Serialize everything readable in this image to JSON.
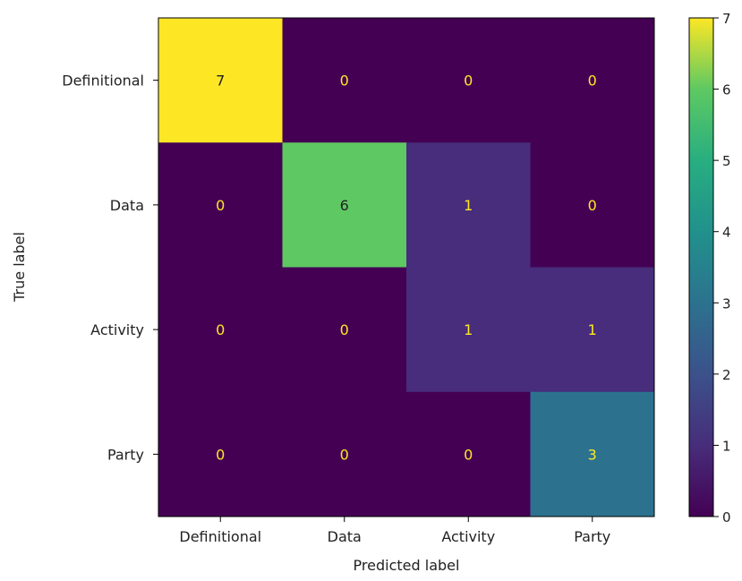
{
  "chart_data": {
    "type": "heatmap",
    "title": "",
    "xlabel": "Predicted label",
    "ylabel": "True label",
    "x_categories": [
      "Definitional",
      "Data",
      "Activity",
      "Party"
    ],
    "y_categories": [
      "Definitional",
      "Data",
      "Activity",
      "Party"
    ],
    "matrix": [
      [
        7,
        0,
        0,
        0
      ],
      [
        0,
        6,
        1,
        0
      ],
      [
        0,
        0,
        1,
        1
      ],
      [
        0,
        0,
        0,
        3
      ]
    ],
    "colorscale": "viridis",
    "value_range": [
      0,
      7
    ],
    "colorbar_ticks": [
      "0",
      "1",
      "2",
      "3",
      "4",
      "5",
      "6",
      "7"
    ],
    "text_color_on_dark": "#fde725",
    "text_color_on_light": "#222222"
  }
}
